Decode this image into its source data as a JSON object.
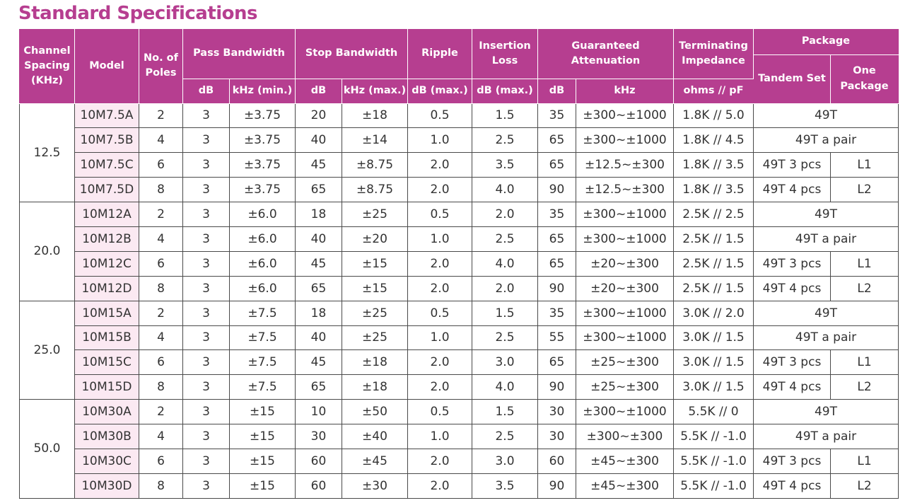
{
  "title": "Standard Specifications",
  "header": {
    "channel_spacing": "Channel Spacing (KHz)",
    "model": "Model",
    "poles": "No. of Poles",
    "pass_bandwidth": "Pass Bandwidth",
    "stop_bandwidth": "Stop Bandwidth",
    "ripple": "Ripple",
    "insertion_loss": "Insertion Loss",
    "guaranteed_attenuation": "Guaranteed Attenuation",
    "terminating_impedance": "Terminating Impedance",
    "package": "Package",
    "tandem_set": "Tandem Set",
    "one_package": "One Package",
    "sub": {
      "pass_db": "dB",
      "pass_khz": "kHz (min.)",
      "stop_db": "dB",
      "stop_khz": "kHz (max.)",
      "ripple": "dB (max.)",
      "insertion": "dB (max.)",
      "att_db": "dB",
      "att_khz": "kHz",
      "impedance": "ohms // pF"
    }
  },
  "groups": [
    {
      "spacing": "12.5",
      "rows": [
        {
          "model": "10M7.5A",
          "poles": "2",
          "pass_db": "3",
          "pass_khz": "±3.75",
          "stop_db": "20",
          "stop_khz": "±18",
          "ripple": "0.5",
          "insertion": "1.5",
          "att_db": "35",
          "att_khz": "±300~±1000",
          "impedance": "1.8K // 5.0",
          "package": "49T"
        },
        {
          "model": "10M7.5B",
          "poles": "4",
          "pass_db": "3",
          "pass_khz": "±3.75",
          "stop_db": "40",
          "stop_khz": "±14",
          "ripple": "1.0",
          "insertion": "2.5",
          "att_db": "65",
          "att_khz": "±300~±1000",
          "impedance": "1.8K // 4.5",
          "package": "49T a pair"
        },
        {
          "model": "10M7.5C",
          "poles": "6",
          "pass_db": "3",
          "pass_khz": "±3.75",
          "stop_db": "45",
          "stop_khz": "±8.75",
          "ripple": "2.0",
          "insertion": "3.5",
          "att_db": "65",
          "att_khz": "±12.5~±300",
          "impedance": "1.8K // 3.5",
          "tandem": "49T 3 pcs",
          "one": "L1"
        },
        {
          "model": "10M7.5D",
          "poles": "8",
          "pass_db": "3",
          "pass_khz": "±3.75",
          "stop_db": "65",
          "stop_khz": "±8.75",
          "ripple": "2.0",
          "insertion": "4.0",
          "att_db": "90",
          "att_khz": "±12.5~±300",
          "impedance": "1.8K // 3.5",
          "tandem": "49T 4 pcs",
          "one": "L2"
        }
      ]
    },
    {
      "spacing": "20.0",
      "rows": [
        {
          "model": "10M12A",
          "poles": "2",
          "pass_db": "3",
          "pass_khz": "±6.0",
          "stop_db": "18",
          "stop_khz": "±25",
          "ripple": "0.5",
          "insertion": "2.0",
          "att_db": "35",
          "att_khz": "±300~±1000",
          "impedance": "2.5K // 2.5",
          "package": "49T"
        },
        {
          "model": "10M12B",
          "poles": "4",
          "pass_db": "3",
          "pass_khz": "±6.0",
          "stop_db": "40",
          "stop_khz": "±20",
          "ripple": "1.0",
          "insertion": "2.5",
          "att_db": "65",
          "att_khz": "±300~±1000",
          "impedance": "2.5K // 1.5",
          "package": "49T a pair"
        },
        {
          "model": "10M12C",
          "poles": "6",
          "pass_db": "3",
          "pass_khz": "±6.0",
          "stop_db": "45",
          "stop_khz": "±15",
          "ripple": "2.0",
          "insertion": "4.0",
          "att_db": "65",
          "att_khz": "±20~±300",
          "impedance": "2.5K // 1.5",
          "tandem": "49T 3 pcs",
          "one": "L1"
        },
        {
          "model": "10M12D",
          "poles": "8",
          "pass_db": "3",
          "pass_khz": "±6.0",
          "stop_db": "65",
          "stop_khz": "±15",
          "ripple": "2.0",
          "insertion": "2.0",
          "att_db": "90",
          "att_khz": "±20~±300",
          "impedance": "2.5K // 1.5",
          "tandem": "49T 4 pcs",
          "one": "L2"
        }
      ]
    },
    {
      "spacing": "25.0",
      "rows": [
        {
          "model": "10M15A",
          "poles": "2",
          "pass_db": "3",
          "pass_khz": "±7.5",
          "stop_db": "18",
          "stop_khz": "±25",
          "ripple": "0.5",
          "insertion": "1.5",
          "att_db": "35",
          "att_khz": "±300~±1000",
          "impedance": "3.0K // 2.0",
          "package": "49T"
        },
        {
          "model": "10M15B",
          "poles": "4",
          "pass_db": "3",
          "pass_khz": "±7.5",
          "stop_db": "40",
          "stop_khz": "±25",
          "ripple": "1.0",
          "insertion": "2.5",
          "att_db": "55",
          "att_khz": "±300~±1000",
          "impedance": "3.0K // 1.5",
          "package": "49T a pair"
        },
        {
          "model": "10M15C",
          "poles": "6",
          "pass_db": "3",
          "pass_khz": "±7.5",
          "stop_db": "45",
          "stop_khz": "±18",
          "ripple": "2.0",
          "insertion": "3.0",
          "att_db": "65",
          "att_khz": "±25~±300",
          "impedance": "3.0K // 1.5",
          "tandem": "49T 3 pcs",
          "one": "L1"
        },
        {
          "model": "10M15D",
          "poles": "8",
          "pass_db": "3",
          "pass_khz": "±7.5",
          "stop_db": "65",
          "stop_khz": "±18",
          "ripple": "2.0",
          "insertion": "4.0",
          "att_db": "90",
          "att_khz": "±25~±300",
          "impedance": "3.0K // 1.5",
          "tandem": "49T 4 pcs",
          "one": "L2"
        }
      ]
    },
    {
      "spacing": "50.0",
      "rows": [
        {
          "model": "10M30A",
          "poles": "2",
          "pass_db": "3",
          "pass_khz": "±15",
          "stop_db": "10",
          "stop_khz": "±50",
          "ripple": "0.5",
          "insertion": "1.5",
          "att_db": "30",
          "att_khz": "±300~±1000",
          "impedance": "5.5K // 0",
          "package": "49T"
        },
        {
          "model": "10M30B",
          "poles": "4",
          "pass_db": "3",
          "pass_khz": "±15",
          "stop_db": "30",
          "stop_khz": "±40",
          "ripple": "1.0",
          "insertion": "2.5",
          "att_db": "30",
          "att_khz": "±300~±300",
          "impedance": "5.5K // -1.0",
          "package": "49T a pair"
        },
        {
          "model": "10M30C",
          "poles": "6",
          "pass_db": "3",
          "pass_khz": "±15",
          "stop_db": "60",
          "stop_khz": "±45",
          "ripple": "2.0",
          "insertion": "3.0",
          "att_db": "60",
          "att_khz": "±45~±300",
          "impedance": "5.5K // -1.0",
          "tandem": "49T 3 pcs",
          "one": "L1"
        },
        {
          "model": "10M30D",
          "poles": "8",
          "pass_db": "3",
          "pass_khz": "±15",
          "stop_db": "60",
          "stop_khz": "±30",
          "ripple": "2.0",
          "insertion": "3.5",
          "att_db": "90",
          "att_khz": "±45~±300",
          "impedance": "5.5K // -1.0",
          "tandem": "49T 4 pcs",
          "one": "L2"
        }
      ]
    }
  ]
}
